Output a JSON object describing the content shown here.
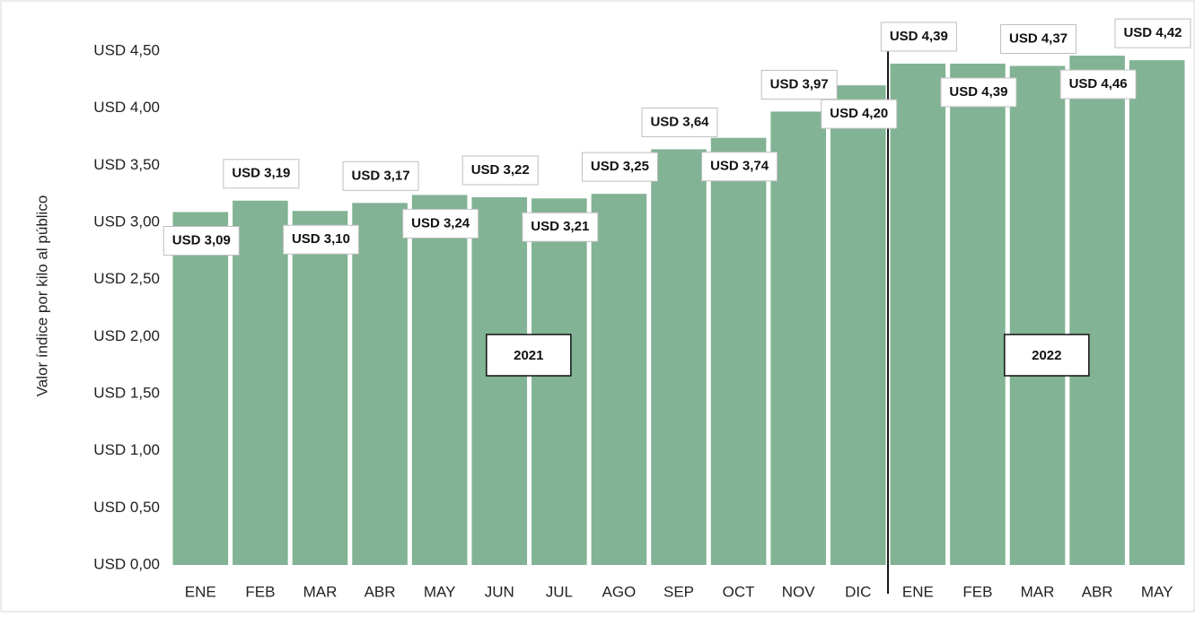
{
  "chart_data": {
    "type": "bar",
    "y_label": "Valor índice por kilo al público",
    "categories": [
      "ENE",
      "FEB",
      "MAR",
      "ABR",
      "MAY",
      "JUN",
      "JUL",
      "AGO",
      "SEP",
      "OCT",
      "NOV",
      "DIC",
      "ENE",
      "FEB",
      "MAR",
      "ABR",
      "MAY"
    ],
    "values": [
      3.09,
      3.19,
      3.1,
      3.17,
      3.24,
      3.22,
      3.21,
      3.25,
      3.64,
      3.74,
      3.97,
      4.2,
      4.39,
      4.39,
      4.37,
      4.46,
      4.42
    ],
    "value_labels": [
      "USD 3,09",
      "USD 3,19",
      "USD 3,10",
      "USD 3,17",
      "USD 3,24",
      "USD 3,22",
      "USD 3,21",
      "USD 3,25",
      "USD 3,64",
      "USD 3,74",
      "USD 3,97",
      "USD 4,20",
      "USD 4,39",
      "USD 4,39",
      "USD 4,37",
      "USD 4,46",
      "USD 4,42"
    ],
    "color": "#82b394",
    "ylim": [
      0,
      4.9
    ],
    "yticks": [
      {
        "value": 0,
        "label": "USD 0,00"
      },
      {
        "value": 0.5,
        "label": "USD 0,50"
      },
      {
        "value": 1,
        "label": "USD 1,00"
      },
      {
        "value": 1.5,
        "label": "USD 1,50"
      },
      {
        "value": 2,
        "label": "USD 2,00"
      },
      {
        "value": 2.5,
        "label": "USD 2,50"
      },
      {
        "value": 3,
        "label": "USD 3,00"
      },
      {
        "value": 3.5,
        "label": "USD 3,50"
      },
      {
        "value": 4,
        "label": "USD 4,00"
      },
      {
        "value": 4.5,
        "label": "USD 4,50"
      }
    ],
    "annotations": [
      "2021",
      "2022"
    ]
  }
}
